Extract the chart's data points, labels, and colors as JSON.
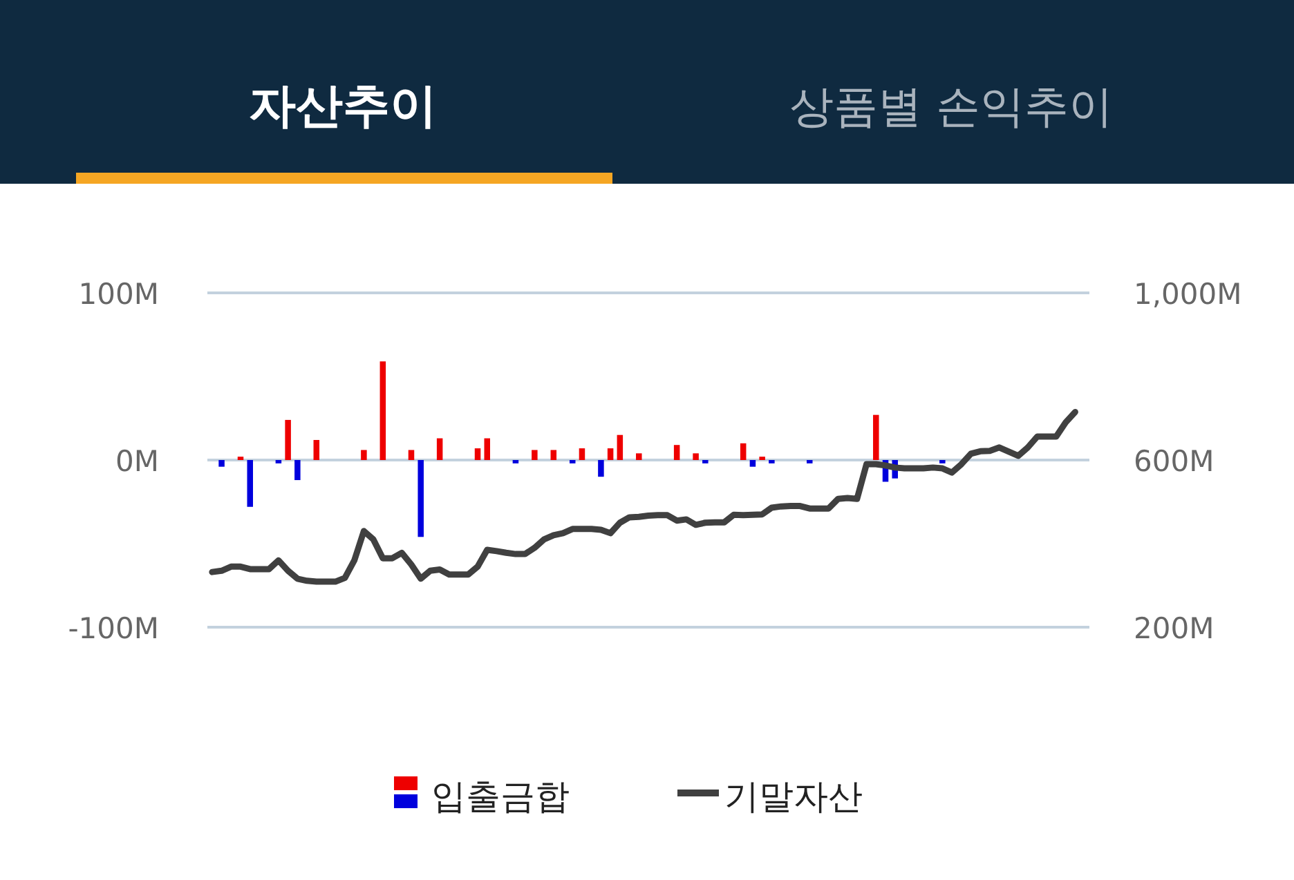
{
  "chart_data": {
    "type": "bar",
    "title": "자산추이",
    "subtitle": "상품별 손익추이",
    "categories": [
      null,
      null,
      null,
      null,
      null,
      null,
      null,
      null,
      null,
      null,
      null,
      null,
      null,
      null,
      null,
      null,
      null,
      null,
      null,
      null,
      null,
      null,
      null,
      null,
      null,
      null,
      null,
      null,
      null,
      null,
      null,
      null,
      null,
      null,
      null,
      null,
      null,
      null,
      null,
      null,
      null,
      null,
      null,
      null,
      null,
      null,
      null,
      null,
      null,
      null,
      null,
      null,
      null,
      null,
      null,
      null,
      null,
      null,
      null,
      null,
      null,
      null,
      null,
      null,
      null,
      null,
      null,
      null,
      null,
      null,
      null,
      null,
      null,
      null,
      null,
      null,
      null,
      null,
      null,
      null,
      null,
      null,
      null,
      null,
      null,
      null,
      null,
      null,
      null,
      null,
      null,
      null,
      null
    ],
    "series": [
      {
        "name": "입출금합",
        "type": "bar",
        "values": [
          null,
          -4,
          null,
          2,
          -28,
          null,
          null,
          -2,
          24,
          -12,
          null,
          12,
          null,
          null,
          null,
          null,
          6,
          null,
          59,
          null,
          null,
          6,
          -46,
          null,
          13,
          null,
          null,
          null,
          7,
          13,
          null,
          null,
          -2,
          null,
          6,
          null,
          6,
          null,
          -2,
          7,
          null,
          -10,
          7,
          15,
          null,
          4,
          null,
          null,
          null,
          9,
          null,
          4,
          -2,
          null,
          null,
          null,
          10,
          -4,
          2,
          -2,
          null,
          null,
          null,
          -2,
          null,
          null,
          null,
          null,
          null,
          null,
          27,
          -13,
          -11,
          null,
          null,
          null,
          null,
          -2,
          null,
          null,
          null,
          null,
          null,
          null,
          null,
          null,
          null,
          null,
          null,
          null,
          null,
          null,
          null
        ],
        "colors": [
          null,
          "#0000dd",
          null,
          "#ee0000",
          "#0000dd",
          null,
          null,
          "#0000dd",
          "#ee0000",
          "#0000dd",
          null,
          "#ee0000",
          null,
          null,
          null,
          null,
          "#ee0000",
          null,
          "#ee0000",
          null,
          null,
          "#ee0000",
          "#0000dd",
          null,
          "#ee0000",
          null,
          null,
          null,
          "#ee0000",
          "#ee0000",
          null,
          null,
          "#0000dd",
          null,
          "#ee0000",
          null,
          "#ee0000",
          null,
          "#0000dd",
          "#ee0000",
          null,
          "#0000dd",
          "#ee0000",
          "#ee0000",
          null,
          "#ee0000",
          null,
          null,
          null,
          "#ee0000",
          null,
          "#ee0000",
          "#0000dd",
          null,
          null,
          null,
          "#ee0000",
          "#0000dd",
          "#ee0000",
          "#0000dd",
          null,
          null,
          null,
          "#0000dd",
          null,
          null,
          null,
          null,
          null,
          null,
          "#ee0000",
          "#0000dd",
          "#0000dd",
          null,
          null,
          null,
          null,
          "#0000dd",
          null,
          null,
          null,
          null,
          null,
          null,
          null,
          null,
          null,
          null,
          null,
          null,
          null,
          null,
          null
        ]
      },
      {
        "name": "기말자산",
        "type": "line",
        "axis": "y2",
        "color": "#404040",
        "values": [
          332,
          335,
          345,
          345,
          339,
          339,
          339,
          360,
          335,
          316,
          311,
          309,
          309,
          309,
          318,
          360,
          430,
          410,
          365,
          365,
          378,
          350,
          316,
          335,
          338,
          326,
          326,
          326,
          345,
          385,
          382,
          378,
          375,
          375,
          390,
          410,
          420,
          425,
          435,
          435,
          435,
          433,
          425,
          450,
          463,
          464,
          467,
          468,
          468,
          455,
          458,
          445,
          450,
          451,
          451,
          469,
          468,
          469,
          470,
          486,
          489,
          490,
          490,
          484,
          484,
          484,
          507,
          509,
          507,
          590,
          590,
          587,
          582,
          580,
          580,
          580,
          582,
          580,
          570,
          590,
          615,
          621,
          622,
          630,
          620,
          610,
          630,
          656,
          656,
          656,
          690,
          715,
          null
        ]
      }
    ],
    "ylim": [
      -100,
      100
    ],
    "yticks": [
      {
        "value": 100,
        "label": "100M"
      },
      {
        "value": 0,
        "label": "0M"
      },
      {
        "value": -100,
        "label": "-100M"
      }
    ],
    "y2lim": [
      200,
      1000
    ],
    "y2ticks": [
      {
        "value": 1000,
        "label": "1,000M"
      },
      {
        "value": 600,
        "label": "600M"
      },
      {
        "value": 200,
        "label": "200M"
      }
    ],
    "grid": "y",
    "legend": "bottom",
    "marker": "none",
    "line_style": "solid"
  }
}
